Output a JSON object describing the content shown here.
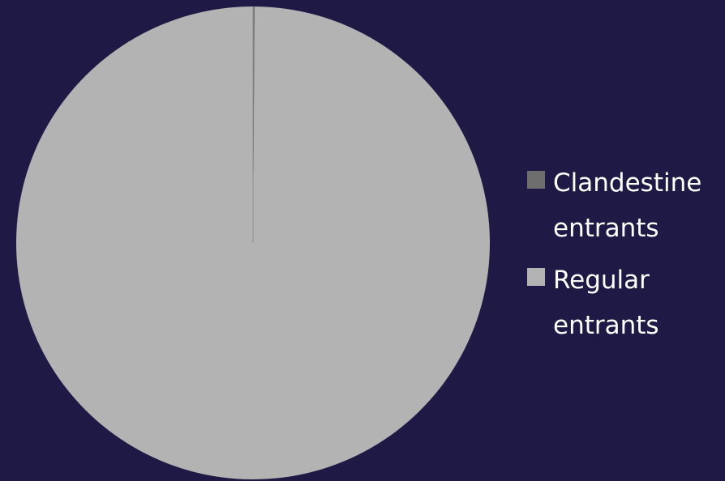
{
  "chart_data": {
    "type": "pie",
    "title": "",
    "series": [
      {
        "name": "Clandestine entrants",
        "value": 0.1,
        "color": "#6e6e6e"
      },
      {
        "name": "Regular entrants",
        "value": 99.9,
        "color": "#b3b3b3"
      }
    ],
    "legend_position": "right"
  },
  "colors": {
    "background": "#1e1a45",
    "text": "#ffffff",
    "slice_divider": "#8f8f8f"
  },
  "legend": {
    "items": [
      {
        "label": "Clandestine entrants",
        "color": "#6e6e6e"
      },
      {
        "label": "Regular entrants",
        "color": "#b3b3b3"
      }
    ]
  }
}
